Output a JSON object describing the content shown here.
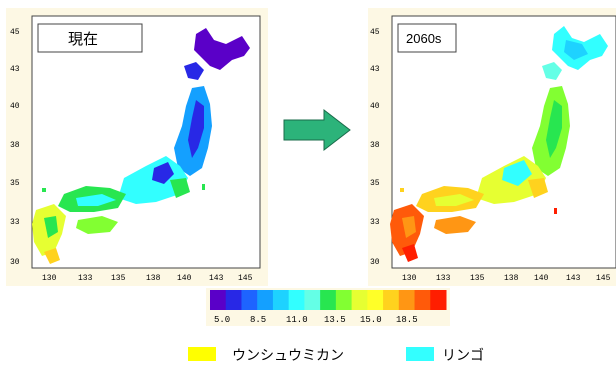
{
  "left_map": {
    "label": "現在",
    "y_ticks": [
      "45",
      "43",
      "40",
      "38",
      "35",
      "33",
      "30"
    ],
    "x_ticks": [
      "130",
      "133",
      "135",
      "138",
      "140",
      "143",
      "145"
    ]
  },
  "right_map": {
    "label": "2060s",
    "y_ticks": [
      "45",
      "43",
      "40",
      "38",
      "35",
      "33",
      "30"
    ],
    "x_ticks": [
      "130",
      "133",
      "135",
      "138",
      "140",
      "143",
      "145"
    ]
  },
  "colorbar": {
    "colors": [
      "#5a00c8",
      "#2828e6",
      "#1e64ff",
      "#14a0ff",
      "#1ed2ff",
      "#32ffff",
      "#64ffe6",
      "#28e650",
      "#82ff32",
      "#e6ff32",
      "#ffff28",
      "#ffd21e",
      "#ff9614",
      "#ff5a0a",
      "#ff1e00"
    ],
    "tick_labels": [
      "5.0",
      "8.5",
      "11.0",
      "13.5",
      "15.0",
      "18.5"
    ]
  },
  "legend": {
    "items": [
      {
        "label": "ウンシュウミカン",
        "color": "#ffff00"
      },
      {
        "label": "リンゴ",
        "color": "#33ffff"
      }
    ]
  },
  "arrow_color": "#2cb37a"
}
